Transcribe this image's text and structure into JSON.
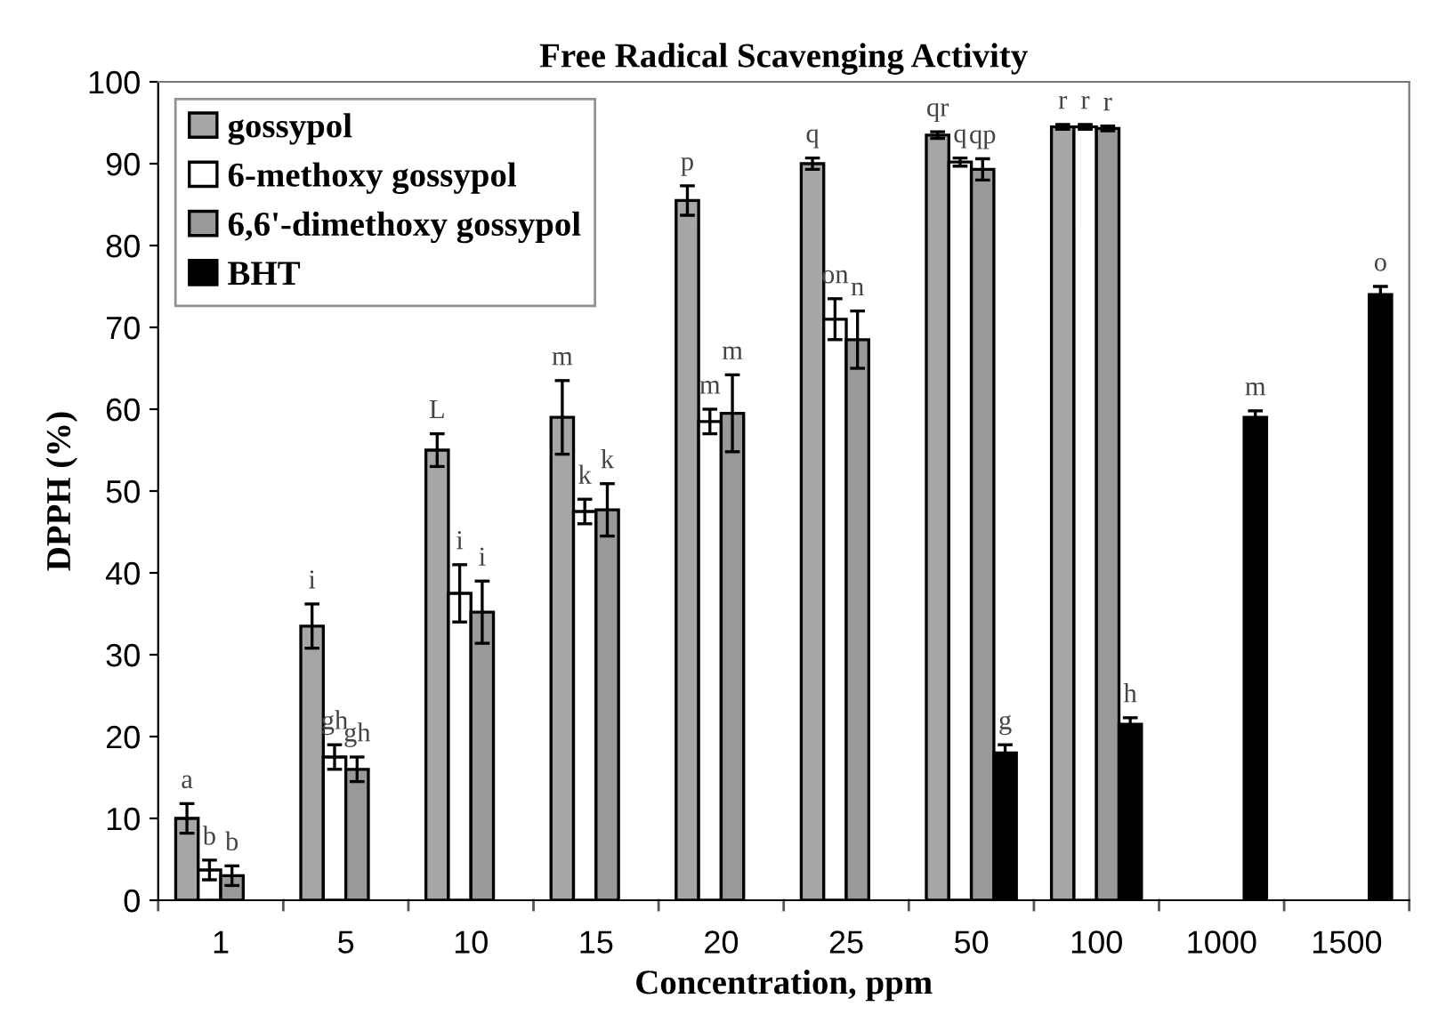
{
  "chart_data": {
    "type": "bar",
    "title": "Free Radical Scavenging Activity",
    "xlabel": "Concentration, ppm",
    "ylabel": "DPPH (%)",
    "categories": [
      "1",
      "5",
      "10",
      "15",
      "20",
      "25",
      "50",
      "100",
      "1000",
      "1500"
    ],
    "series": [
      {
        "name": "gossypol",
        "color": "#a6a6a6",
        "values": [
          10,
          33.5,
          55,
          59,
          85.5,
          90,
          93.5,
          94.5,
          null,
          null
        ],
        "errors": [
          1.8,
          2.7,
          2,
          4.5,
          1.8,
          0.7,
          0.4,
          0.3,
          null,
          null
        ],
        "value_labels": [
          "a",
          "i",
          "L",
          "m",
          "p",
          "q",
          "qr",
          "r",
          null,
          null
        ]
      },
      {
        "name": "6-methoxy gossypol",
        "color": "#ffffff",
        "values": [
          3.7,
          17.5,
          37.5,
          47.5,
          58.5,
          71,
          90.2,
          94.5,
          null,
          null
        ],
        "errors": [
          1.2,
          1.5,
          3.5,
          1.5,
          1.5,
          2.5,
          0.5,
          0.3,
          null,
          null
        ],
        "value_labels": [
          "b",
          "gh",
          "i",
          "k",
          "m",
          "on",
          "q",
          "r",
          null,
          null
        ]
      },
      {
        "name": "6,6'-dimethoxy gossypol",
        "color": "#999999",
        "values": [
          3,
          16,
          35.2,
          47.7,
          59.5,
          68.5,
          89.3,
          94.3,
          null,
          null
        ],
        "errors": [
          1.2,
          1.5,
          3.8,
          3.2,
          4.7,
          3.5,
          1.3,
          0.3,
          null,
          null
        ],
        "value_labels": [
          "b",
          "gh",
          "i",
          "k",
          "m",
          "n",
          "qp",
          "r",
          null,
          null
        ]
      },
      {
        "name": "BHT",
        "color": "#000000",
        "values": [
          null,
          null,
          null,
          null,
          null,
          null,
          18,
          21.5,
          59,
          74
        ],
        "errors": [
          null,
          null,
          null,
          null,
          null,
          null,
          1,
          0.8,
          0.8,
          1
        ],
        "value_labels": [
          null,
          null,
          null,
          null,
          null,
          null,
          "g",
          "h",
          "m",
          "o"
        ]
      }
    ],
    "ylim": [
      0,
      100
    ],
    "yticks": [
      0,
      10,
      20,
      30,
      40,
      50,
      60,
      70,
      80,
      90,
      100
    ],
    "grid": false,
    "legend": "top left"
  }
}
